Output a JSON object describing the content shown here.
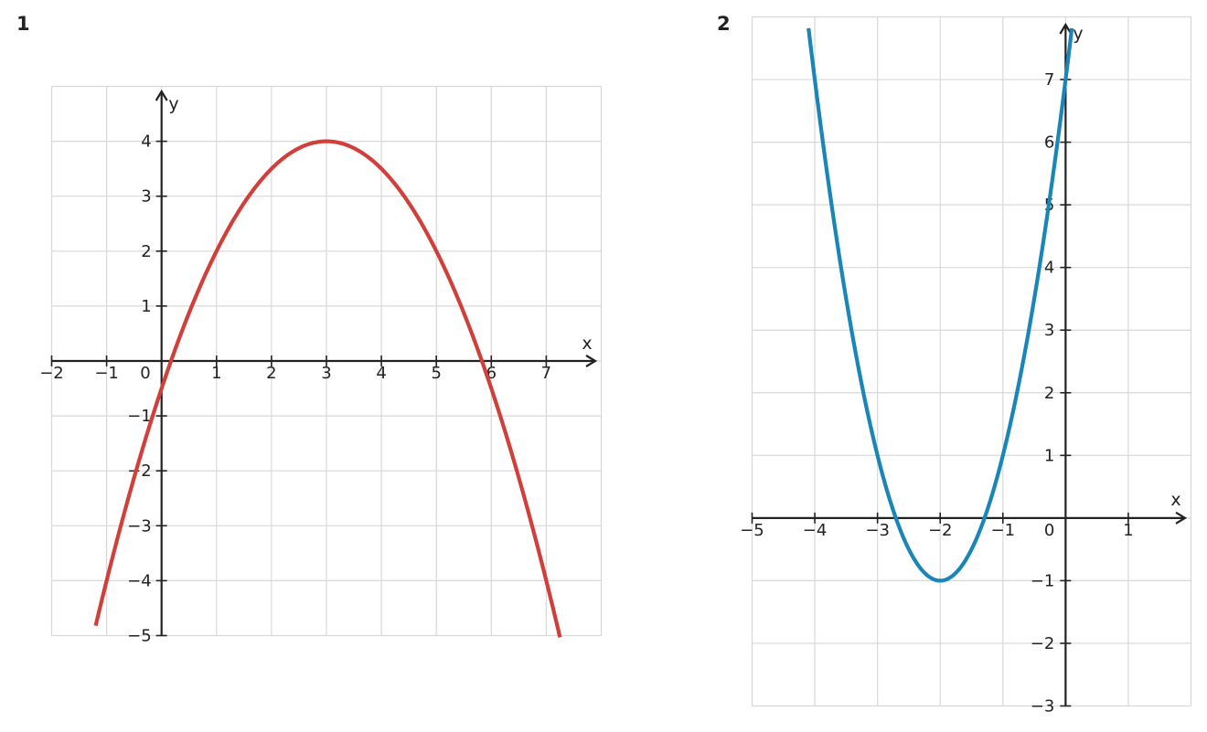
{
  "panels": [
    {
      "number": "1"
    },
    {
      "number": "2"
    }
  ],
  "chart_data": [
    {
      "type": "line",
      "title": "",
      "xlabel": "x",
      "ylabel": "y",
      "xlim": [
        -2,
        8
      ],
      "ylim": [
        -5,
        5
      ],
      "grid": true,
      "x_ticks": [
        -2,
        -1,
        1,
        2,
        3,
        4,
        5,
        6,
        7
      ],
      "y_ticks": [
        -5,
        -4,
        -3,
        -2,
        -1,
        1,
        2,
        3,
        4
      ],
      "origin_label": "0",
      "series": [
        {
          "function": "-0.5*(x-3)^2+4",
          "color": "#d13f3a",
          "x_range": [
            -1.2,
            7.25
          ],
          "x": [
            -1,
            0,
            1,
            2,
            3,
            4,
            5,
            6,
            7
          ],
          "y": [
            -4,
            -0.5,
            2,
            3.5,
            4,
            3.5,
            2,
            -0.5,
            -4
          ]
        }
      ]
    },
    {
      "type": "line",
      "title": "",
      "xlabel": "x",
      "ylabel": "y",
      "xlim": [
        -5,
        2
      ],
      "ylim": [
        -3,
        8
      ],
      "grid": true,
      "x_ticks": [
        -5,
        -4,
        -3,
        -2,
        -1,
        1
      ],
      "y_ticks": [
        -3,
        -2,
        -1,
        1,
        2,
        3,
        4,
        5,
        6,
        7
      ],
      "origin_label": "0",
      "series": [
        {
          "function": "2*(x+2)^2-1",
          "color": "#1a86b8",
          "x_range": [
            -4.1,
            0.1
          ],
          "x": [
            -4,
            -3,
            -2,
            -1,
            0
          ],
          "y": [
            7,
            1,
            -1,
            1,
            7
          ]
        }
      ]
    }
  ]
}
